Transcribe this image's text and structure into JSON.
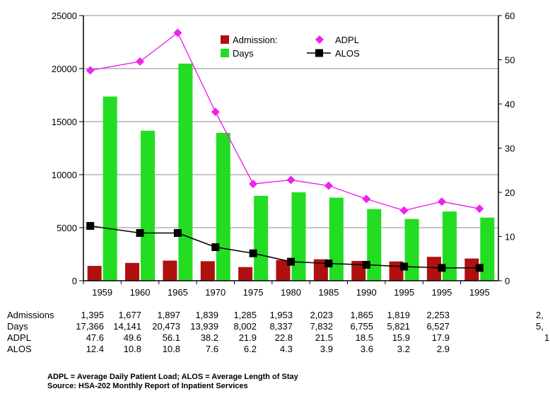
{
  "chart_data": {
    "type": "bar",
    "title": "",
    "categories": [
      "1959",
      "1960",
      "1965",
      "1970",
      "1975",
      "1980",
      "1985",
      "1990",
      "1995",
      "1995",
      "1995"
    ],
    "series": [
      {
        "name": "Admission:",
        "kind": "bar",
        "axis": "left",
        "color": "#b01010",
        "values": [
          1395,
          1677,
          1897,
          1839,
          1285,
          1953,
          2023,
          1865,
          1819,
          2253,
          2093
        ]
      },
      {
        "name": "Days",
        "kind": "bar",
        "axis": "left",
        "color": "#22dd22",
        "values": [
          17366,
          14141,
          20473,
          13939,
          8002,
          8337,
          7832,
          6755,
          5821,
          6527,
          5950
        ]
      },
      {
        "name": "ADPL",
        "kind": "line",
        "axis": "right",
        "color": "#ee22ee",
        "marker": "diamond",
        "values": [
          47.6,
          49.6,
          56.1,
          38.2,
          21.9,
          22.8,
          21.5,
          18.5,
          15.9,
          17.9,
          16.3
        ]
      },
      {
        "name": "ALOS",
        "kind": "line",
        "axis": "right",
        "color": "#000000",
        "marker": "square",
        "values": [
          12.4,
          10.8,
          10.8,
          7.6,
          6.2,
          4.3,
          3.9,
          3.6,
          3.2,
          2.9,
          2.9
        ]
      }
    ],
    "y_left": {
      "min": 0,
      "max": 25000,
      "ticks": [
        "0",
        "5000",
        "10000",
        "15000",
        "20000",
        "25000"
      ]
    },
    "y_right": {
      "min": 0,
      "max": 60,
      "ticks": [
        "0",
        "10",
        "20",
        "30",
        "40",
        "50",
        "60"
      ]
    },
    "grid": true,
    "legend_position": "top-right"
  },
  "table": {
    "rows": [
      {
        "label": "Admissions",
        "values": [
          "1,395",
          "1,677",
          "1,897",
          "1,839",
          "1,285",
          "1,953",
          "2,023",
          "1,865",
          "1,819",
          "2,253",
          "2,"
        ]
      },
      {
        "label": "Days",
        "values": [
          "17,366",
          "14,141",
          "20,473",
          "13,939",
          "8,002",
          "8,337",
          "7,832",
          "6,755",
          "5,821",
          "6,527",
          "5,"
        ]
      },
      {
        "label": "ADPL",
        "values": [
          "47.6",
          "49.6",
          "56.1",
          "38.2",
          "21.9",
          "22.8",
          "21.5",
          "18.5",
          "15.9",
          "17.9",
          "1"
        ]
      },
      {
        "label": "ALOS",
        "values": [
          "12.4",
          "10.8",
          "10.8",
          "7.6",
          "6.2",
          "4.3",
          "3.9",
          "3.6",
          "3.2",
          "2.9",
          ""
        ]
      }
    ]
  },
  "notes": {
    "line1": "ADPL = Average Daily Patient Load; ALOS = Average Length of Stay",
    "line2": "Source: HSA-202 Monthly Report of Inpatient Services"
  }
}
